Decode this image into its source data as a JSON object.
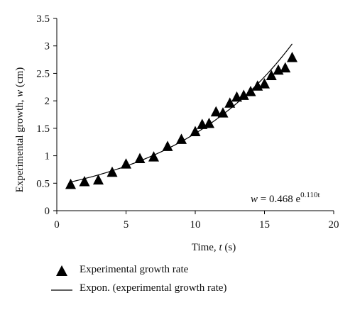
{
  "chart_data": {
    "type": "scatter",
    "xlabel_prefix": "Time,",
    "xlabel_var": "t",
    "xlabel_unit": "(s)",
    "ylabel_prefix": "Experimental growth,",
    "ylabel_var": "w",
    "ylabel_unit": "(cm)",
    "xlim": [
      0,
      20
    ],
    "ylim": [
      0,
      3.5
    ],
    "xticks": [
      "0",
      "5",
      "10",
      "15",
      "20"
    ],
    "yticks": [
      "0",
      "0.5",
      "1",
      "1.5",
      "2",
      "2.5",
      "3",
      "3.5"
    ],
    "grid": false,
    "legend_placement": "bottom",
    "series": [
      {
        "name": "Experimental growth rate",
        "marker": "triangle",
        "color": "#000000",
        "x": [
          1,
          2,
          3,
          4,
          5,
          6,
          7,
          8,
          9,
          10,
          10.5,
          11,
          11.5,
          12,
          12.5,
          13,
          13.5,
          14,
          14.5,
          15,
          15.5,
          16,
          16.5,
          17
        ],
        "y": [
          0.48,
          0.53,
          0.56,
          0.7,
          0.85,
          0.95,
          0.98,
          1.17,
          1.3,
          1.44,
          1.57,
          1.59,
          1.8,
          1.78,
          1.96,
          2.07,
          2.1,
          2.17,
          2.27,
          2.31,
          2.46,
          2.56,
          2.6,
          2.79
        ]
      },
      {
        "name": "Expon. (experimental growth rate)",
        "type": "line",
        "color": "#000000",
        "fit": {
          "a": 0.468,
          "b": 0.11,
          "x_from": 1,
          "x_to": 17
        }
      }
    ],
    "equation": {
      "lhs": "w",
      "rhs_coef": "= 0.468 e",
      "exponent": "0.110t"
    }
  }
}
